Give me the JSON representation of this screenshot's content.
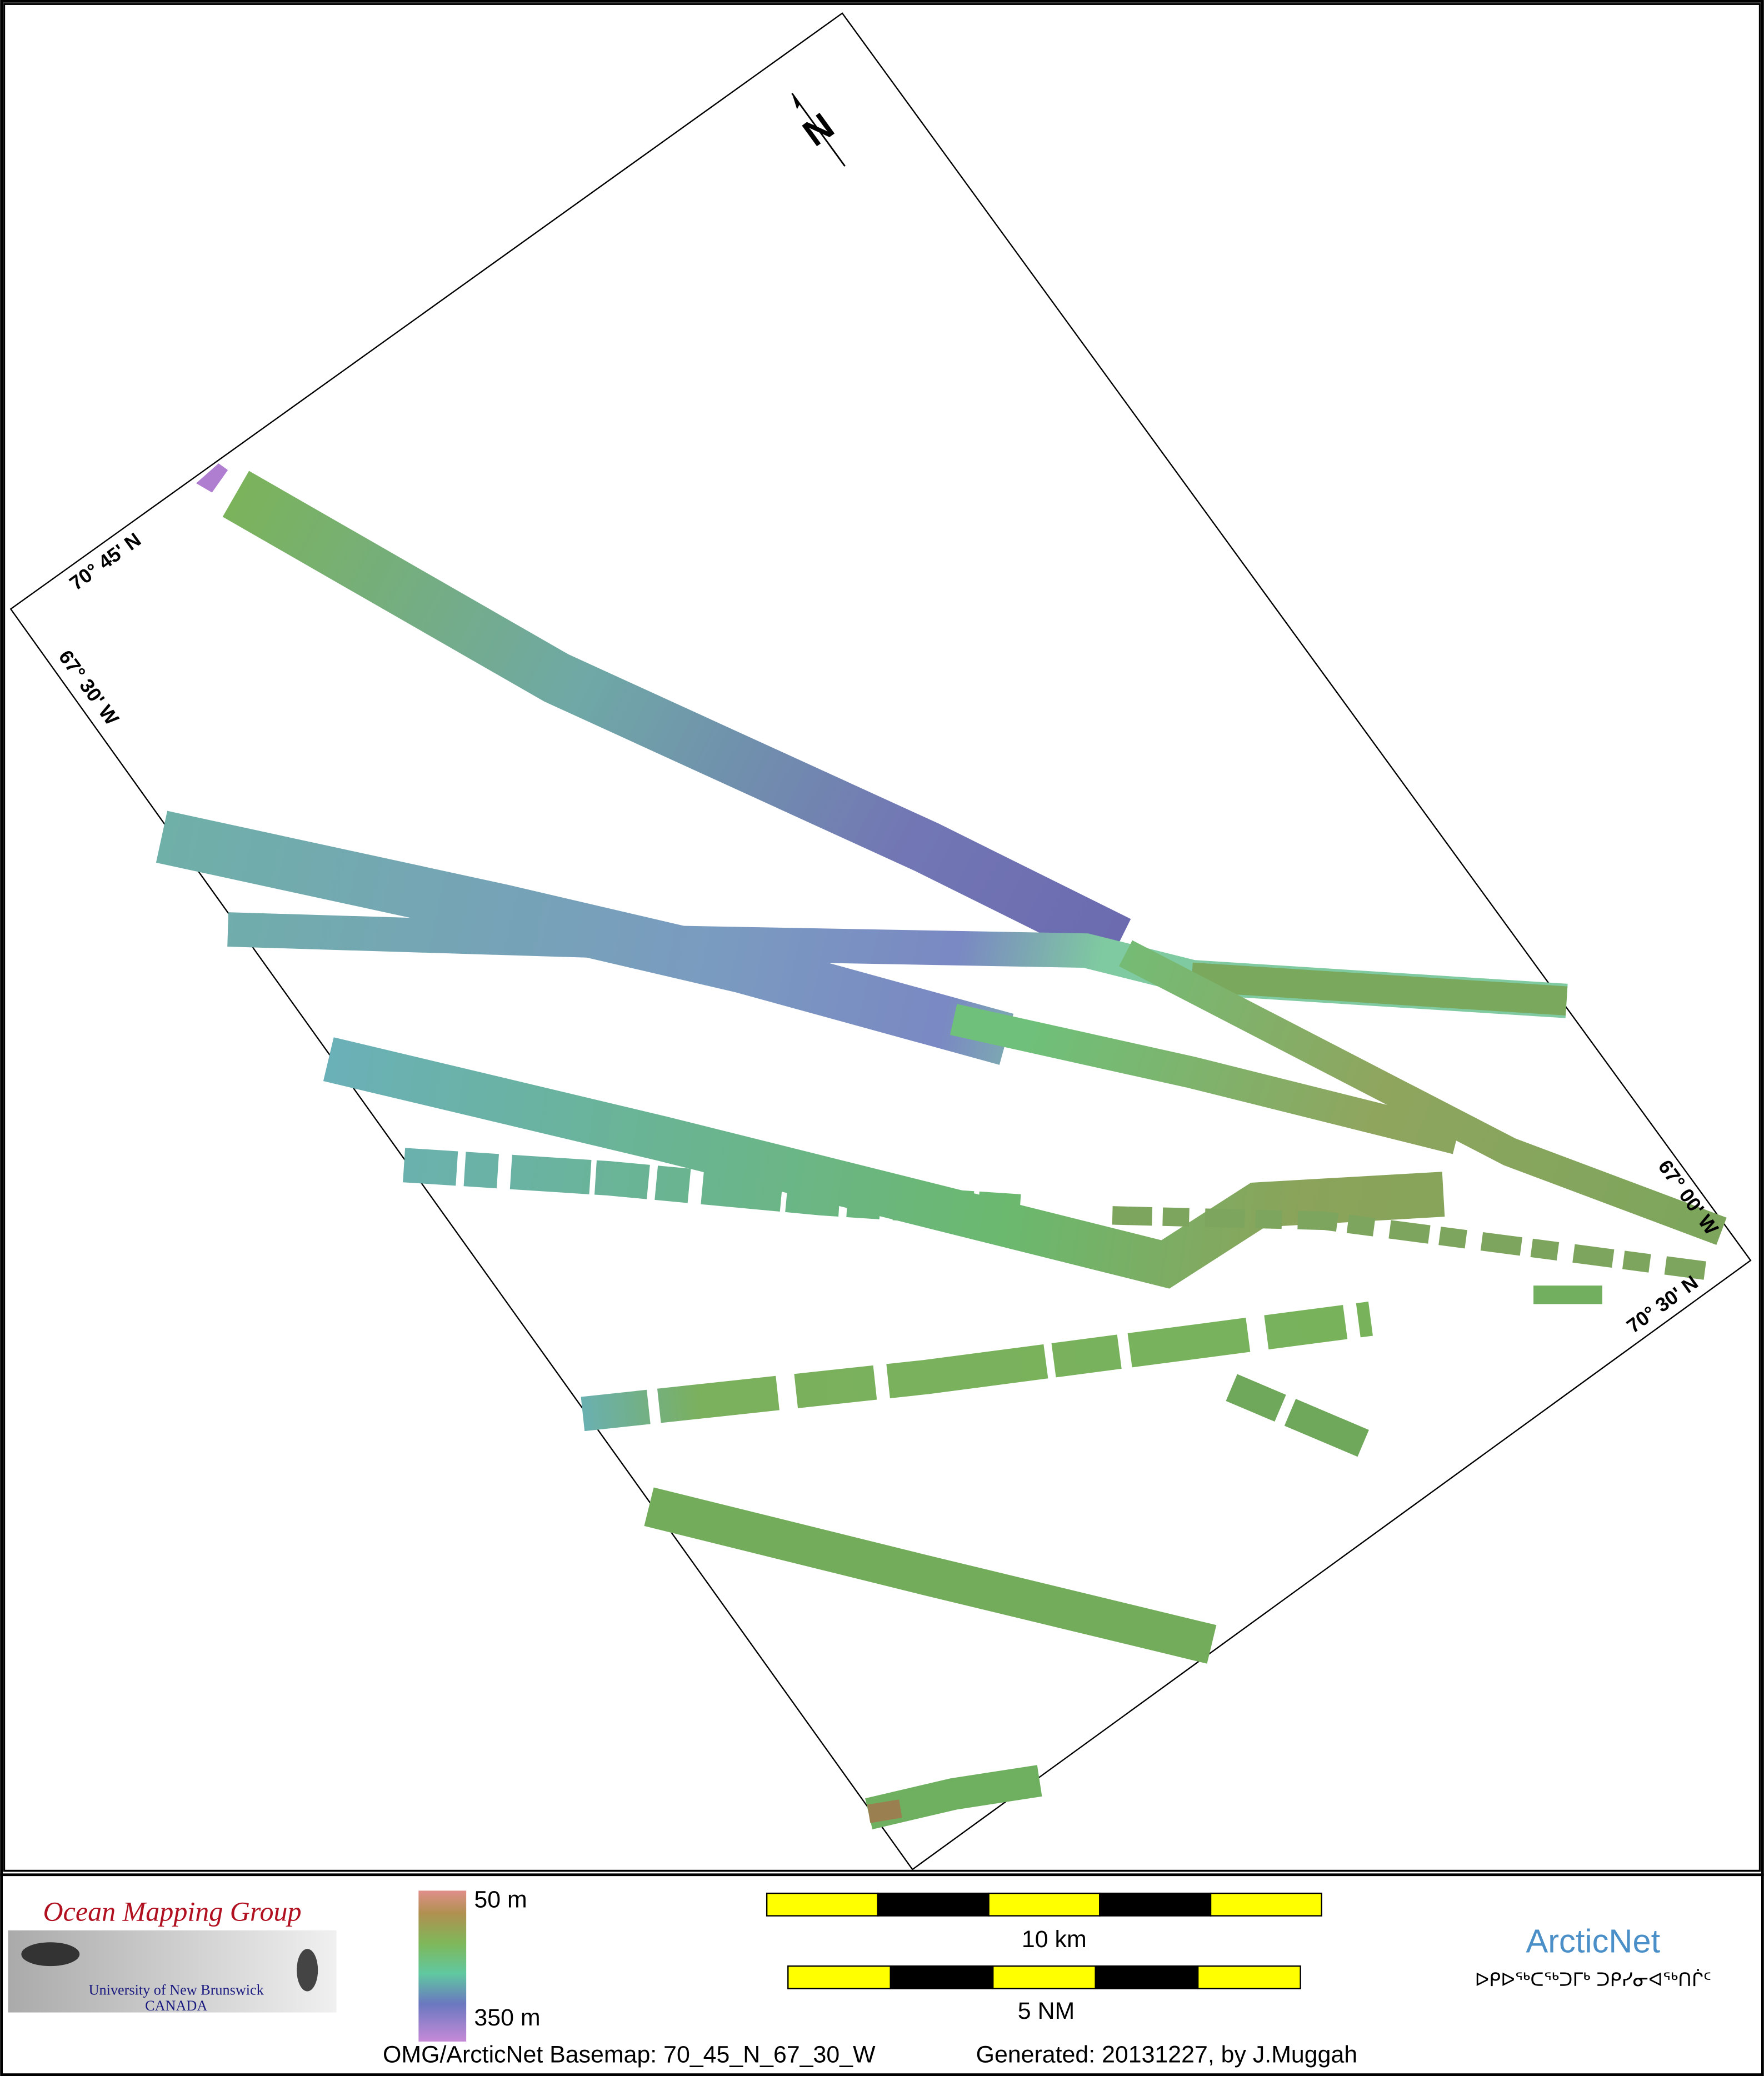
{
  "map": {
    "north_label": "N",
    "coords": {
      "top_left_lat": "70° 45' N",
      "top_left_lon": "67° 30' W",
      "right_lon": "67° 00' W",
      "right_lat": "70° 30' N"
    },
    "footer": {
      "logo_title": "Ocean Mapping Group",
      "logo_university": "University of New Brunswick",
      "logo_country": "CANADA",
      "depth_top": "50 m",
      "depth_bottom": "350 m",
      "scale_km": "10 km",
      "scale_nm": "5 NM",
      "arcticnet": "ArcticNet",
      "arcticnet_inuktitut": "ᐅᑭᐅᖅᑕᖅᑐᒥᒃ ᑐᑭᓯᓂᐊᖅᑎᒌᑦ",
      "basemap": "OMG/ArcticNet Basemap: 70_45_N_67_30_W",
      "generated": "Generated: 20131227, by J.Muggah"
    }
  }
}
